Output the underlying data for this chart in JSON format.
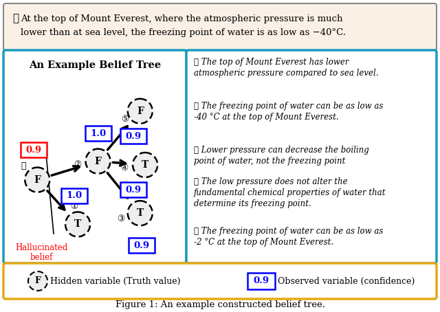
{
  "top_text_line1": "⒪ At the top of Mount Everest, where the atmospheric pressure is much",
  "top_text_line2": "lower than at sea level, the freezing point of water is as low as -40°C.",
  "belief_tree_title": "An Example Belief Tree",
  "nodes": [
    {
      "id": 0,
      "label": "F",
      "nx": 0.14,
      "ny": 0.58,
      "num": "0"
    },
    {
      "id": 1,
      "label": "T",
      "nx": 0.38,
      "ny": 0.82,
      "num": "1"
    },
    {
      "id": 2,
      "label": "F",
      "nx": 0.5,
      "ny": 0.48,
      "num": "2"
    },
    {
      "id": 3,
      "label": "T",
      "nx": 0.75,
      "ny": 0.76,
      "num": "3"
    },
    {
      "id": 4,
      "label": "T",
      "nx": 0.78,
      "ny": 0.5,
      "num": "4"
    },
    {
      "id": 5,
      "label": "F",
      "nx": 0.75,
      "ny": 0.21,
      "num": "5"
    }
  ],
  "edges": [
    {
      "from": 0,
      "to": 1
    },
    {
      "from": 0,
      "to": 2
    },
    {
      "from": 2,
      "to": 3
    },
    {
      "from": 2,
      "to": 4
    },
    {
      "from": 2,
      "to": 5
    }
  ],
  "obs_boxes": [
    {
      "label": "1.0",
      "nx": 0.36,
      "ny": 0.665,
      "color": "blue"
    },
    {
      "label": "0.9",
      "nx": 0.76,
      "ny": 0.935,
      "color": "blue"
    },
    {
      "label": "0.9",
      "nx": 0.71,
      "ny": 0.635,
      "color": "blue"
    },
    {
      "label": "0.9",
      "nx": 0.71,
      "ny": 0.345,
      "color": "blue"
    },
    {
      "label": "1.0",
      "nx": 0.5,
      "ny": 0.33,
      "color": "blue"
    },
    {
      "label": "0.9",
      "nx": 0.12,
      "ny": 0.42,
      "color": "red"
    }
  ],
  "right_texts": [
    "① The top of Mount Everest has lower\natmospheric pressure compared to sea level.",
    "② The freezing point of water can be as low as\n-40 °C at the top of Mount Everest.",
    "③ Lower pressure can decrease the boiling\npoint of water, not the freezing point",
    "④ The low pressure does not alter the\nfundamental chemical properties of water that\ndetermine its freezing point.",
    "⑤ The freezing point of water can be as low as\n-2 °C at the top of Mount Everest."
  ],
  "legend_hidden_text": "Hidden variable (Truth value)",
  "legend_obs_text": "Observed variable (confidence)",
  "legend_obs_val": "0.9",
  "figure_caption": "Figure 1: An example constructed belief tree.",
  "top_bg_color": "#faf0e6",
  "left_box_edge": "#1a9abf",
  "right_box_edge": "#1a9abf",
  "legend_box_edge": "#e6a817"
}
